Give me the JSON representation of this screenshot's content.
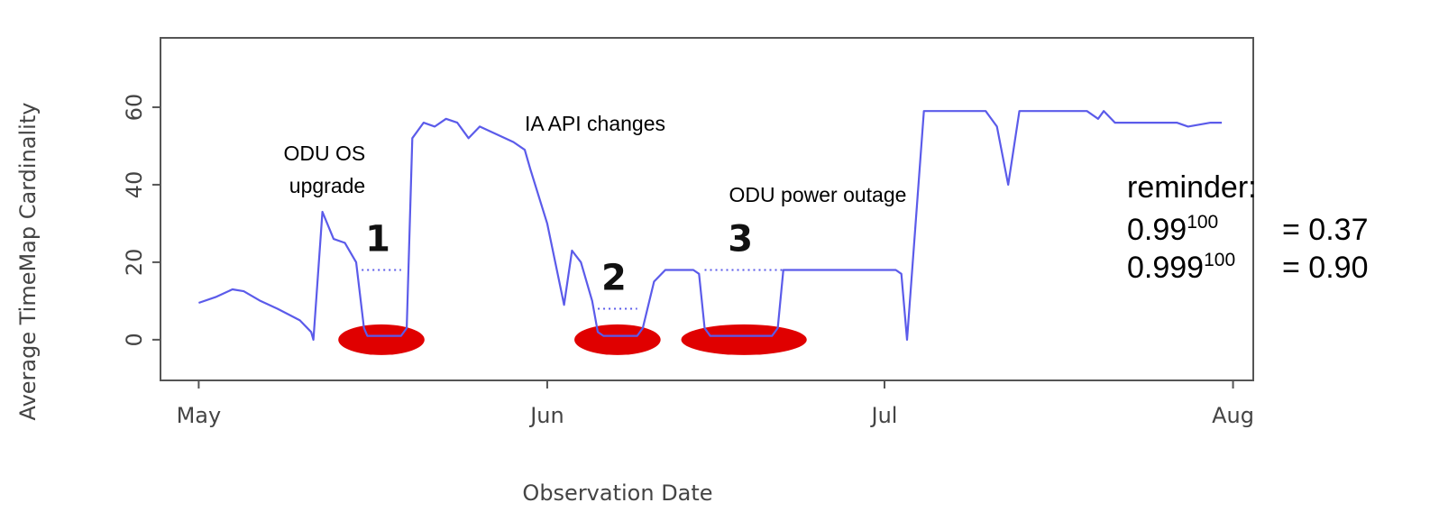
{
  "chart_data": {
    "type": "line",
    "y_label": "Average TimeMap Cardinality",
    "x_label": "Observation Date",
    "xlim": [
      -3.4,
      93.8
    ],
    "ylim": [
      -10.5,
      77.9
    ],
    "xticks": [
      {
        "value": 0,
        "label": "May"
      },
      {
        "value": 31,
        "label": "Jun"
      },
      {
        "value": 61,
        "label": "Jul"
      },
      {
        "value": 92,
        "label": "Aug"
      }
    ],
    "yticks": [
      0,
      20,
      40,
      60
    ],
    "series": [
      {
        "color": "#5b5bea",
        "x": [
          0,
          1.5,
          3,
          4,
          5.5,
          7,
          8,
          9,
          10,
          10.2,
          11,
          12,
          13,
          14,
          14.7,
          15,
          18,
          18.5,
          19,
          20,
          21,
          22,
          23,
          24,
          25,
          26.5,
          28,
          29,
          29.5,
          31,
          32,
          32.5,
          33.2,
          34,
          35,
          35.5,
          36,
          39,
          39.5,
          40.5,
          41.5,
          44,
          44.5,
          45,
          45.5,
          51,
          51.5,
          52,
          62,
          62.5,
          63,
          64.5,
          70,
          71,
          72,
          73,
          79,
          80,
          80.5,
          81.5,
          87,
          88,
          90,
          91
        ],
        "values": [
          9.5,
          11,
          13,
          12.5,
          10,
          8,
          6.5,
          5,
          2,
          0,
          33,
          26,
          25,
          20,
          3,
          1,
          1,
          3,
          52,
          56,
          55,
          57,
          56,
          52,
          55,
          53,
          51,
          49,
          44,
          30,
          16,
          9,
          23,
          20,
          10,
          2,
          1,
          1,
          3,
          15,
          18,
          18,
          17,
          3,
          1,
          1,
          3,
          18,
          18,
          17,
          0,
          59,
          59,
          55,
          40,
          59,
          59,
          57,
          59,
          56,
          56,
          55,
          56,
          56
        ]
      }
    ],
    "annotations": [
      {
        "label": "1",
        "x": [
          14.5,
          18
        ],
        "y": 18
      },
      {
        "label": "2",
        "x": [
          35.5,
          39
        ],
        "y": 8
      },
      {
        "label": "3",
        "x": [
          45,
          52
        ],
        "y": 18
      }
    ],
    "highlight_color": "#e00000",
    "text_annotations": [
      {
        "lines": [
          "ODU OS",
          "upgrade"
        ]
      },
      {
        "lines": [
          "IA API changes"
        ]
      },
      {
        "lines": [
          "ODU power outage"
        ]
      }
    ],
    "reminder": {
      "title": "reminder:",
      "lines": [
        {
          "base": "0.99",
          "exponent": "100",
          "result": "= 0.37"
        },
        {
          "base": "0.999",
          "exponent": "100",
          "result": "= 0.90"
        }
      ]
    }
  }
}
